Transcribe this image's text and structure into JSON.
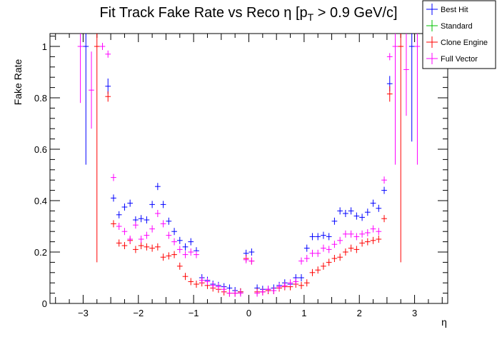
{
  "chart_data": {
    "type": "scatter",
    "title": "Fit Track Fake Rate vs Reco η [p",
    "title_sub": "T",
    "title_suffix": " > 0.9 GeV/c]",
    "xlabel": "η",
    "ylabel": "Fake Rate",
    "xlim": [
      -3.6,
      3.6
    ],
    "ylim": [
      0,
      1.05
    ],
    "x_ticks": [
      -3,
      -2,
      -1,
      0,
      1,
      2,
      3
    ],
    "x_tick_labels": [
      "−3",
      "−2",
      "−1",
      "0",
      "1",
      "2",
      "3"
    ],
    "y_ticks": [
      0,
      0.2,
      0.4,
      0.6,
      0.8,
      1
    ],
    "y_tick_labels": [
      "0",
      "0.2",
      "0.4",
      "0.6",
      "0.8",
      "1"
    ],
    "legend_position": "top-right",
    "series": [
      {
        "name": "Best Hit",
        "color": "#0000ff",
        "x": [
          -2.95,
          -2.55,
          -2.45,
          -2.35,
          -2.25,
          -2.15,
          -2.05,
          -1.95,
          -1.85,
          -1.75,
          -1.65,
          -1.55,
          -1.45,
          -1.35,
          -1.25,
          -1.15,
          -1.05,
          -0.95,
          -0.85,
          -0.75,
          -0.65,
          -0.55,
          -0.45,
          -0.35,
          -0.25,
          -0.15,
          -0.05,
          0.05,
          0.15,
          0.25,
          0.35,
          0.45,
          0.55,
          0.65,
          0.75,
          0.85,
          0.95,
          1.05,
          1.15,
          1.25,
          1.35,
          1.45,
          1.55,
          1.65,
          1.75,
          1.85,
          1.95,
          2.05,
          2.15,
          2.25,
          2.35,
          2.45,
          2.55,
          2.95
        ],
        "values": [
          1.0,
          0.845,
          0.41,
          0.345,
          0.375,
          0.39,
          0.325,
          0.33,
          0.325,
          0.385,
          0.455,
          0.385,
          0.32,
          0.28,
          0.245,
          0.22,
          0.24,
          0.205,
          0.1,
          0.09,
          0.075,
          0.07,
          0.065,
          0.06,
          0.05,
          0.045,
          0.195,
          0.2,
          0.06,
          0.055,
          0.055,
          0.06,
          0.07,
          0.08,
          0.075,
          0.1,
          0.1,
          0.215,
          0.26,
          0.26,
          0.265,
          0.26,
          0.32,
          0.36,
          0.35,
          0.36,
          0.34,
          0.335,
          0.355,
          0.39,
          0.37,
          0.44,
          0.855,
          1.0
        ],
        "errors": [
          0.46,
          0.03,
          0.01,
          0.01,
          0.01,
          0.01,
          0.01,
          0.01,
          0.01,
          0.01,
          0.01,
          0.01,
          0.01,
          0.01,
          0.01,
          0.01,
          0.01,
          0.01,
          0.01,
          0.01,
          0.01,
          0.01,
          0.01,
          0.01,
          0.01,
          0.01,
          0.01,
          0.01,
          0.01,
          0.01,
          0.01,
          0.01,
          0.01,
          0.01,
          0.01,
          0.01,
          0.01,
          0.01,
          0.01,
          0.01,
          0.01,
          0.01,
          0.01,
          0.01,
          0.01,
          0.01,
          0.01,
          0.01,
          0.01,
          0.01,
          0.01,
          0.01,
          0.03,
          0.37
        ]
      },
      {
        "name": "Standard",
        "color": "#00c000",
        "x": [],
        "values": [],
        "errors": []
      },
      {
        "name": "Clone Engine",
        "color": "#ff0000",
        "x": [
          -2.75,
          -2.55,
          -2.45,
          -2.35,
          -2.25,
          -2.15,
          -2.05,
          -1.95,
          -1.85,
          -1.75,
          -1.65,
          -1.55,
          -1.45,
          -1.35,
          -1.25,
          -1.15,
          -1.05,
          -0.95,
          -0.85,
          -0.75,
          -0.65,
          -0.55,
          -0.45,
          -0.35,
          -0.25,
          -0.15,
          -0.05,
          0.05,
          0.15,
          0.25,
          0.35,
          0.45,
          0.55,
          0.65,
          0.75,
          0.85,
          0.95,
          1.05,
          1.15,
          1.25,
          1.35,
          1.45,
          1.55,
          1.65,
          1.75,
          1.85,
          1.95,
          2.05,
          2.15,
          2.25,
          2.35,
          2.45,
          2.55,
          2.75
        ],
        "values": [
          1.0,
          0.805,
          0.31,
          0.235,
          0.225,
          0.245,
          0.21,
          0.225,
          0.22,
          0.215,
          0.22,
          0.18,
          0.185,
          0.19,
          0.145,
          0.105,
          0.085,
          0.075,
          0.08,
          0.07,
          0.06,
          0.055,
          0.045,
          0.04,
          0.04,
          0.045,
          0.175,
          0.165,
          0.045,
          0.045,
          0.05,
          0.05,
          0.06,
          0.065,
          0.065,
          0.075,
          0.07,
          0.08,
          0.12,
          0.13,
          0.145,
          0.16,
          0.175,
          0.18,
          0.2,
          0.215,
          0.21,
          0.235,
          0.24,
          0.245,
          0.25,
          0.33,
          0.815,
          1.0
        ],
        "errors": [
          0.84,
          0.02,
          0.01,
          0.01,
          0.01,
          0.01,
          0.01,
          0.01,
          0.01,
          0.01,
          0.01,
          0.01,
          0.01,
          0.01,
          0.01,
          0.01,
          0.01,
          0.01,
          0.01,
          0.01,
          0.01,
          0.01,
          0.01,
          0.01,
          0.01,
          0.01,
          0.01,
          0.01,
          0.01,
          0.01,
          0.01,
          0.01,
          0.01,
          0.01,
          0.01,
          0.01,
          0.01,
          0.01,
          0.01,
          0.01,
          0.01,
          0.01,
          0.01,
          0.01,
          0.01,
          0.01,
          0.01,
          0.01,
          0.01,
          0.01,
          0.01,
          0.01,
          0.03,
          0.84
        ]
      },
      {
        "name": "Full Vector",
        "color": "#ff00ff",
        "x": [
          -3.05,
          -2.85,
          -2.65,
          -2.55,
          -2.45,
          -2.35,
          -2.25,
          -2.15,
          -2.05,
          -1.95,
          -1.85,
          -1.75,
          -1.65,
          -1.55,
          -1.45,
          -1.35,
          -1.25,
          -1.15,
          -1.05,
          -0.95,
          -0.85,
          -0.75,
          -0.65,
          -0.55,
          -0.45,
          -0.35,
          -0.25,
          -0.15,
          -0.05,
          0.05,
          0.15,
          0.25,
          0.35,
          0.45,
          0.55,
          0.65,
          0.75,
          0.85,
          0.95,
          1.05,
          1.15,
          1.25,
          1.35,
          1.45,
          1.55,
          1.65,
          1.75,
          1.85,
          1.95,
          2.05,
          2.15,
          2.25,
          2.35,
          2.45,
          2.55,
          2.65,
          2.85,
          3.05
        ],
        "values": [
          1.0,
          0.83,
          1.0,
          0.97,
          0.49,
          0.3,
          0.28,
          0.25,
          0.305,
          0.25,
          0.265,
          0.29,
          0.35,
          0.31,
          0.265,
          0.24,
          0.21,
          0.19,
          0.2,
          0.19,
          0.09,
          0.085,
          0.07,
          0.065,
          0.055,
          0.04,
          0.04,
          0.04,
          0.17,
          0.165,
          0.04,
          0.045,
          0.055,
          0.05,
          0.065,
          0.07,
          0.08,
          0.085,
          0.165,
          0.175,
          0.195,
          0.195,
          0.215,
          0.21,
          0.23,
          0.245,
          0.27,
          0.27,
          0.26,
          0.27,
          0.275,
          0.29,
          0.28,
          0.48,
          0.96,
          1.0,
          0.91,
          1.0
        ],
        "errors": [
          0.22,
          0.15,
          0.0,
          0.01,
          0.01,
          0.01,
          0.01,
          0.01,
          0.01,
          0.01,
          0.01,
          0.01,
          0.01,
          0.01,
          0.01,
          0.01,
          0.01,
          0.01,
          0.01,
          0.01,
          0.01,
          0.01,
          0.01,
          0.01,
          0.01,
          0.01,
          0.01,
          0.01,
          0.01,
          0.01,
          0.01,
          0.01,
          0.01,
          0.01,
          0.01,
          0.01,
          0.01,
          0.01,
          0.01,
          0.01,
          0.01,
          0.01,
          0.01,
          0.01,
          0.01,
          0.01,
          0.01,
          0.01,
          0.01,
          0.01,
          0.01,
          0.01,
          0.01,
          0.01,
          0.01,
          0.46,
          0.18,
          0.46
        ]
      }
    ]
  }
}
